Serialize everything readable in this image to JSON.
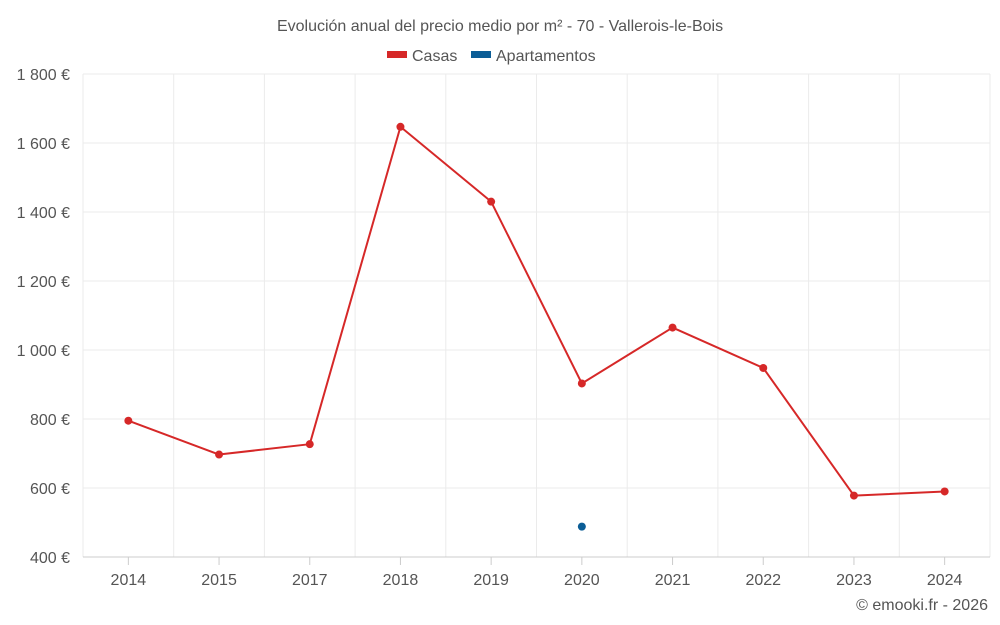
{
  "chart_data": {
    "type": "line",
    "title": "Evolución anual del precio medio por m² - 70 - Vallerois-le-Bois",
    "categories": [
      "2014",
      "2015",
      "2017",
      "2018",
      "2019",
      "2020",
      "2021",
      "2022",
      "2023",
      "2024"
    ],
    "series": [
      {
        "name": "Casas",
        "color": "#d62828",
        "values": [
          795,
          697,
          727,
          1647,
          1430,
          903,
          1065,
          948,
          578,
          590
        ]
      },
      {
        "name": "Apartamentos",
        "color": "#0b5d96",
        "values": [
          null,
          null,
          null,
          null,
          null,
          488,
          null,
          null,
          null,
          null
        ]
      }
    ],
    "ylim": [
      400,
      1800
    ],
    "yticks": [
      400,
      600,
      800,
      1000,
      1200,
      1400,
      1600,
      1800
    ],
    "ytick_labels": [
      "400 €",
      "600 €",
      "800 €",
      "1 000 €",
      "1 200 €",
      "1 400 €",
      "1 600 €",
      "1 800 €"
    ],
    "xlabel": "",
    "ylabel": "",
    "grid": true,
    "legend_position": "top-center"
  },
  "footer": {
    "credit": "© emooki.fr - 2026"
  }
}
